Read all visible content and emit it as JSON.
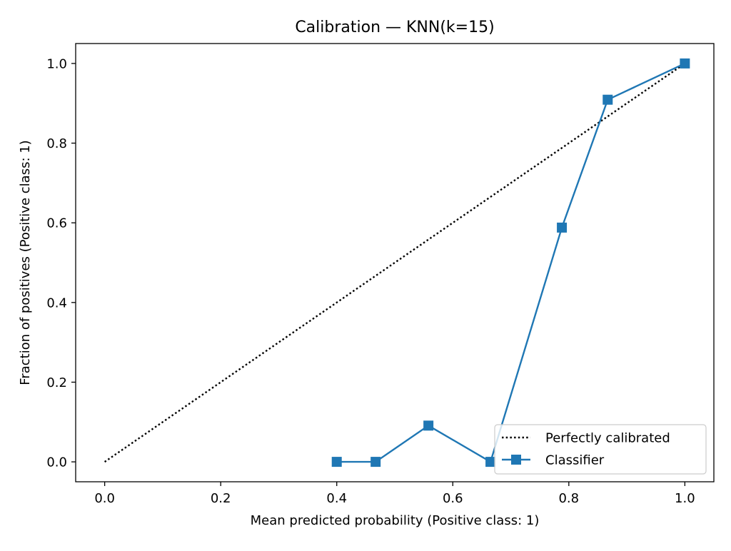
{
  "chart_data": {
    "type": "line",
    "title": "Calibration — KNN(k=15)",
    "xlabel": "Mean predicted probability (Positive class: 1)",
    "ylabel": "Fraction of positives (Positive class: 1)",
    "xlim": [
      -0.05,
      1.05
    ],
    "ylim": [
      -0.05,
      1.05
    ],
    "xticks": [
      0.0,
      0.2,
      0.4,
      0.6,
      0.8,
      1.0
    ],
    "xtick_labels": [
      "0.0",
      "0.2",
      "0.4",
      "0.6",
      "0.8",
      "1.0"
    ],
    "yticks": [
      0.0,
      0.2,
      0.4,
      0.6,
      0.8,
      1.0
    ],
    "ytick_labels": [
      "0.0",
      "0.2",
      "0.4",
      "0.6",
      "0.8",
      "1.0"
    ],
    "grid": false,
    "legend_position": "lower-right",
    "series": [
      {
        "name": "Perfectly calibrated",
        "style": "dotted",
        "color": "#000000",
        "marker": "none",
        "x": [
          0.0,
          1.0
        ],
        "y": [
          0.0,
          1.0
        ]
      },
      {
        "name": "Classifier",
        "style": "solid",
        "color": "#1f77b4",
        "marker": "square",
        "x": [
          0.4,
          0.467,
          0.558,
          0.665,
          0.788,
          0.867,
          1.0
        ],
        "y": [
          0.0,
          0.0,
          0.091,
          0.0,
          0.588,
          0.909,
          1.0
        ]
      }
    ]
  }
}
